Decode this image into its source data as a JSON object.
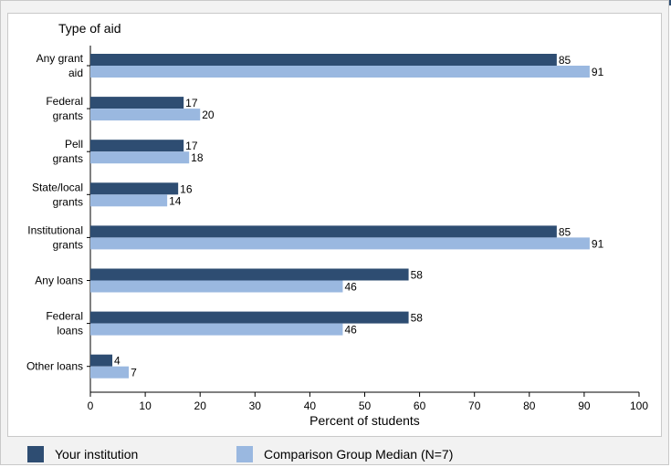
{
  "colors": {
    "institution": "#2e4d72",
    "comparison": "#9ab8e0",
    "band": "#2e4d72"
  },
  "legend": {
    "institution_label": "Your institution",
    "comparison_label": "Comparison Group Median (N=7)"
  },
  "chart_data": {
    "type": "bar",
    "orientation": "horizontal",
    "title": "",
    "ylabel": "Type of aid",
    "xlabel": "Percent of students",
    "xlim": [
      0,
      100
    ],
    "xticks": [
      0,
      10,
      20,
      30,
      40,
      50,
      60,
      70,
      80,
      90,
      100
    ],
    "grid": false,
    "legend_position": "bottom",
    "categories": [
      [
        "Any grant",
        "aid"
      ],
      [
        "Federal",
        "grants"
      ],
      [
        "Pell",
        "grants"
      ],
      [
        "State/local",
        "grants"
      ],
      [
        "Institutional",
        "grants"
      ],
      [
        "Any loans"
      ],
      [
        "Federal",
        "loans"
      ],
      [
        "Other loans"
      ]
    ],
    "series": [
      {
        "name": "Your institution",
        "values": [
          85,
          17,
          17,
          16,
          85,
          58,
          58,
          4
        ]
      },
      {
        "name": "Comparison Group Median (N=7)",
        "values": [
          91,
          20,
          18,
          14,
          91,
          46,
          46,
          7
        ]
      }
    ]
  }
}
